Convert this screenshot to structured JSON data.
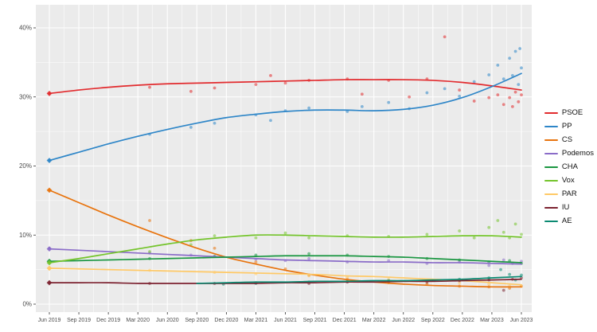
{
  "chart_data": {
    "type": "line",
    "title": "",
    "xlabel": "",
    "ylabel": "",
    "legend_position": "right",
    "grid": true,
    "plot_background": "#ebebeb",
    "grid_color": "#ffffff",
    "tick_label_color": "#4d4d4d",
    "ylim": [
      0,
      43
    ],
    "y_ticks": [
      0,
      10,
      20,
      30,
      40
    ],
    "y_tick_labels": [
      "0%",
      "10%",
      "20%",
      "30%",
      "40%"
    ],
    "y_minor_ticks": [
      5,
      15,
      25,
      35
    ],
    "x_tick_labels": [
      "Jun 2019",
      "Sep 2019",
      "Dec 2019",
      "Mar 2020",
      "Jun 2020",
      "Sep 2020",
      "Dec 2020",
      "Mar 2021",
      "Jun 2021",
      "Sep 2021",
      "Dec 2021",
      "Mar 2022",
      "Jun 2022",
      "Sep 2022",
      "Dec 2022",
      "Mar 2023",
      "Jun 2023"
    ],
    "series": [
      {
        "name": "PSOE",
        "color": "#e22b2e",
        "trend": [
          30.5,
          31.0,
          31.4,
          31.7,
          31.9,
          32.0,
          32.1,
          32.2,
          32.3,
          32.4,
          32.5,
          32.5,
          32.5,
          32.4,
          32.1,
          31.6,
          31.0
        ],
        "points": [
          [
            0,
            30.5
          ],
          [
            3.4,
            31.4
          ],
          [
            4.8,
            30.8
          ],
          [
            5.6,
            31.3
          ],
          [
            7.0,
            31.8
          ],
          [
            7.5,
            33.1
          ],
          [
            8.0,
            32.0
          ],
          [
            8.8,
            32.4
          ],
          [
            10.1,
            32.6
          ],
          [
            10.6,
            30.4
          ],
          [
            11.5,
            32.4
          ],
          [
            12.2,
            30.0
          ],
          [
            12.8,
            32.6
          ],
          [
            13.4,
            38.7
          ],
          [
            13.9,
            31.0
          ],
          [
            14.4,
            29.4
          ],
          [
            14.9,
            29.9
          ],
          [
            15.2,
            30.3
          ],
          [
            15.4,
            28.9
          ],
          [
            15.6,
            29.9
          ],
          [
            15.7,
            28.6
          ],
          [
            15.8,
            30.7
          ],
          [
            15.9,
            29.3
          ],
          [
            16,
            30.3
          ]
        ]
      },
      {
        "name": "PP",
        "color": "#2e86c8",
        "trend": [
          20.8,
          22.0,
          23.2,
          24.3,
          25.3,
          26.2,
          27.0,
          27.5,
          27.9,
          28.1,
          28.1,
          28.0,
          28.2,
          28.8,
          29.9,
          31.5,
          33.4
        ],
        "points": [
          [
            0,
            20.8
          ],
          [
            3.4,
            24.6
          ],
          [
            4.8,
            25.6
          ],
          [
            5.6,
            26.2
          ],
          [
            7.0,
            27.4
          ],
          [
            7.5,
            26.6
          ],
          [
            8.0,
            28.0
          ],
          [
            8.8,
            28.4
          ],
          [
            10.1,
            27.9
          ],
          [
            10.6,
            28.6
          ],
          [
            11.5,
            29.2
          ],
          [
            12.2,
            28.3
          ],
          [
            12.8,
            30.6
          ],
          [
            13.4,
            31.2
          ],
          [
            13.9,
            30.1
          ],
          [
            14.4,
            32.2
          ],
          [
            14.9,
            33.2
          ],
          [
            15.2,
            34.6
          ],
          [
            15.4,
            32.6
          ],
          [
            15.6,
            35.6
          ],
          [
            15.7,
            33.1
          ],
          [
            15.8,
            36.6
          ],
          [
            15.9,
            31.8
          ],
          [
            15.95,
            37.0
          ],
          [
            16,
            34.2
          ]
        ]
      },
      {
        "name": "CS",
        "color": "#e8740e",
        "trend": [
          16.5,
          14.7,
          12.9,
          11.2,
          9.6,
          8.1,
          6.8,
          5.8,
          4.9,
          4.2,
          3.6,
          3.2,
          2.9,
          2.7,
          2.6,
          2.5,
          2.5
        ],
        "points": [
          [
            0,
            16.5
          ],
          [
            3.4,
            12.1
          ],
          [
            4.8,
            9.2
          ],
          [
            5.6,
            8.1
          ],
          [
            7.0,
            6.1
          ],
          [
            8.0,
            5.1
          ],
          [
            8.8,
            4.2
          ],
          [
            10.1,
            3.6
          ],
          [
            11.5,
            3.1
          ],
          [
            12.8,
            2.9
          ],
          [
            13.9,
            2.6
          ],
          [
            14.9,
            2.5
          ],
          [
            15.6,
            2.3
          ],
          [
            16,
            2.6
          ]
        ]
      },
      {
        "name": "Podemos",
        "color": "#8a6cc8",
        "trend": [
          8.0,
          7.8,
          7.6,
          7.4,
          7.2,
          7.0,
          6.8,
          6.6,
          6.4,
          6.3,
          6.2,
          6.1,
          6.1,
          6.0,
          6.0,
          5.9,
          5.8
        ],
        "points": [
          [
            0,
            8.1
          ],
          [
            3.4,
            7.4
          ],
          [
            4.8,
            7.1
          ],
          [
            5.6,
            6.9
          ],
          [
            7.0,
            6.5
          ],
          [
            8.0,
            6.3
          ],
          [
            8.8,
            6.6
          ],
          [
            10.1,
            6.1
          ],
          [
            11.5,
            6.3
          ],
          [
            12.8,
            5.9
          ],
          [
            13.9,
            6.1
          ],
          [
            14.9,
            5.6
          ],
          [
            15.4,
            6.4
          ],
          [
            15.7,
            5.9
          ],
          [
            16,
            6.2
          ]
        ]
      },
      {
        "name": "CHA",
        "color": "#1a9641",
        "trend": [
          6.2,
          6.3,
          6.4,
          6.5,
          6.6,
          6.7,
          6.8,
          6.9,
          7.0,
          7.0,
          7.0,
          6.9,
          6.8,
          6.6,
          6.4,
          6.2,
          6.0
        ],
        "points": [
          [
            0,
            6.2
          ],
          [
            3.4,
            6.6
          ],
          [
            5.6,
            6.9
          ],
          [
            7.0,
            7.1
          ],
          [
            8.8,
            7.3
          ],
          [
            10.1,
            7.1
          ],
          [
            11.5,
            6.9
          ],
          [
            12.8,
            6.6
          ],
          [
            13.9,
            6.4
          ],
          [
            14.9,
            6.1
          ],
          [
            15.6,
            6.3
          ],
          [
            16,
            5.9
          ]
        ]
      },
      {
        "name": "Vox",
        "color": "#74c42c",
        "trend": [
          6.0,
          6.6,
          7.3,
          8.0,
          8.7,
          9.3,
          9.7,
          10.0,
          10.0,
          9.9,
          9.8,
          9.7,
          9.7,
          9.8,
          9.9,
          9.9,
          9.7
        ],
        "points": [
          [
            0,
            6.1
          ],
          [
            3.4,
            7.6
          ],
          [
            4.8,
            8.6
          ],
          [
            5.6,
            9.9
          ],
          [
            7.0,
            9.6
          ],
          [
            8.0,
            10.3
          ],
          [
            8.8,
            9.6
          ],
          [
            10.1,
            9.9
          ],
          [
            11.5,
            9.8
          ],
          [
            12.8,
            10.1
          ],
          [
            13.9,
            10.6
          ],
          [
            14.4,
            9.6
          ],
          [
            14.9,
            11.1
          ],
          [
            15.2,
            12.1
          ],
          [
            15.4,
            10.4
          ],
          [
            15.6,
            9.6
          ],
          [
            15.8,
            11.6
          ],
          [
            16,
            10.1
          ]
        ]
      },
      {
        "name": "PAR",
        "color": "#ffc966",
        "trend": [
          5.2,
          5.1,
          5.0,
          4.9,
          4.8,
          4.7,
          4.6,
          4.5,
          4.4,
          4.3,
          4.1,
          4.0,
          3.8,
          3.6,
          3.4,
          3.1,
          2.8
        ],
        "points": [
          [
            0,
            5.1
          ],
          [
            3.4,
            4.9
          ],
          [
            5.6,
            4.6
          ],
          [
            7.0,
            4.4
          ],
          [
            8.8,
            4.1
          ],
          [
            10.1,
            3.9
          ],
          [
            11.5,
            3.6
          ],
          [
            12.8,
            3.4
          ],
          [
            13.9,
            3.1
          ],
          [
            14.9,
            2.9
          ],
          [
            15.6,
            2.6
          ],
          [
            16,
            2.6
          ]
        ]
      },
      {
        "name": "IU",
        "color": "#7c2230",
        "trend": [
          3.1,
          3.1,
          3.1,
          3.0,
          3.0,
          3.0,
          3.0,
          3.0,
          3.1,
          3.1,
          3.2,
          3.2,
          3.3,
          3.3,
          3.4,
          3.5,
          3.6
        ],
        "points": [
          [
            0,
            3.1
          ],
          [
            3.4,
            3.0
          ],
          [
            5.6,
            3.0
          ],
          [
            7.0,
            3.1
          ],
          [
            8.8,
            3.0
          ],
          [
            10.1,
            3.2
          ],
          [
            11.5,
            3.3
          ],
          [
            12.8,
            3.2
          ],
          [
            13.9,
            3.4
          ],
          [
            14.9,
            3.5
          ],
          [
            15.4,
            2.0
          ],
          [
            15.7,
            3.6
          ],
          [
            16,
            3.8
          ]
        ]
      },
      {
        "name": "AE",
        "color": "#0b8a72",
        "trend": [
          null,
          null,
          null,
          null,
          null,
          3.0,
          3.1,
          3.2,
          3.2,
          3.3,
          3.3,
          3.4,
          3.4,
          3.5,
          3.6,
          3.8,
          4.0
        ],
        "points": [
          [
            5.9,
            2.9
          ],
          [
            7.0,
            3.0
          ],
          [
            8.8,
            3.2
          ],
          [
            10.1,
            3.3
          ],
          [
            11.5,
            3.4
          ],
          [
            12.8,
            3.5
          ],
          [
            13.9,
            3.6
          ],
          [
            14.9,
            3.8
          ],
          [
            15.3,
            5.0
          ],
          [
            15.6,
            4.3
          ],
          [
            15.8,
            3.5
          ],
          [
            16,
            4.2
          ]
        ]
      }
    ]
  },
  "legend": {
    "items": [
      {
        "label": "PSOE"
      },
      {
        "label": "PP"
      },
      {
        "label": "CS"
      },
      {
        "label": "Podemos"
      },
      {
        "label": "CHA"
      },
      {
        "label": "Vox"
      },
      {
        "label": "PAR"
      },
      {
        "label": "IU"
      },
      {
        "label": "AE"
      }
    ]
  }
}
